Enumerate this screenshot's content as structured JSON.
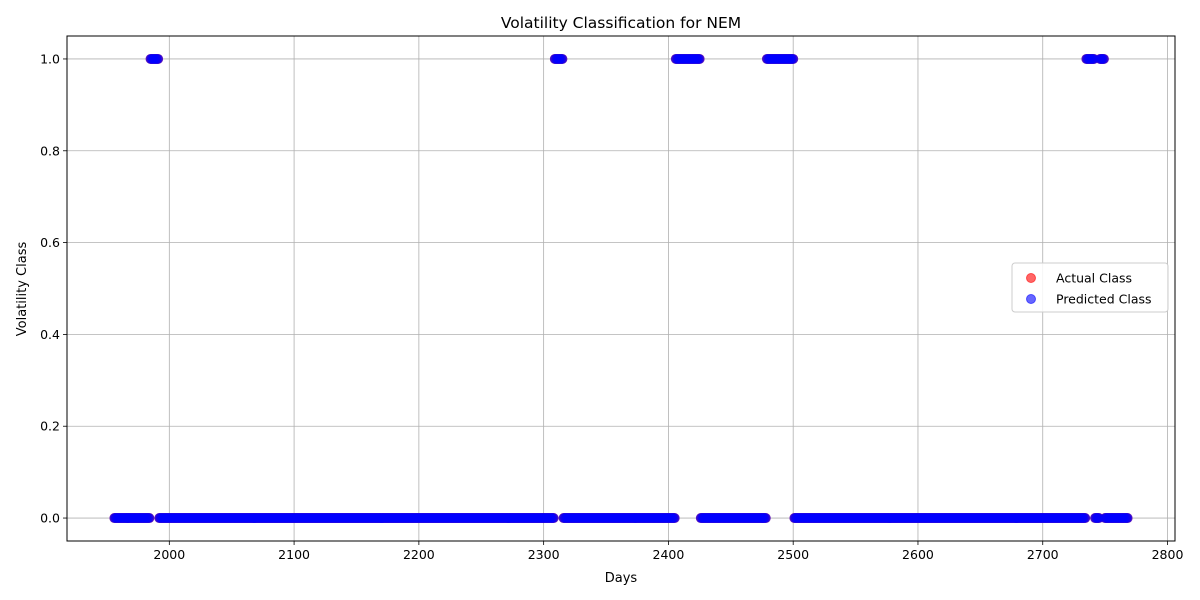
{
  "chart_data": {
    "type": "scatter",
    "title": "Volatility Classification for NEM",
    "xlabel": "Days",
    "ylabel": "Volatility Class",
    "xlim": [
      1918,
      2806
    ],
    "ylim": [
      -0.05,
      1.05
    ],
    "xticks": [
      "2000",
      "2100",
      "2200",
      "2300",
      "2400",
      "2500",
      "2600",
      "2700",
      "2800"
    ],
    "yticks": [
      "0.0",
      "0.2",
      "0.4",
      "0.6",
      "0.8",
      "1.0"
    ],
    "grid": true,
    "legend_position": "center-right",
    "x_start": 1956,
    "x_end": 2768,
    "class_1_ranges": [
      [
        1985,
        1991
      ],
      [
        2309,
        2315
      ],
      [
        2406,
        2425
      ],
      [
        2479,
        2500
      ],
      [
        2735,
        2741
      ],
      [
        2746,
        2749
      ]
    ],
    "series": [
      {
        "name": "Actual Class",
        "color": "#ff0000",
        "alpha": 0.6
      },
      {
        "name": "Predicted Class",
        "color": "#0000ff",
        "alpha": 0.6
      }
    ]
  }
}
